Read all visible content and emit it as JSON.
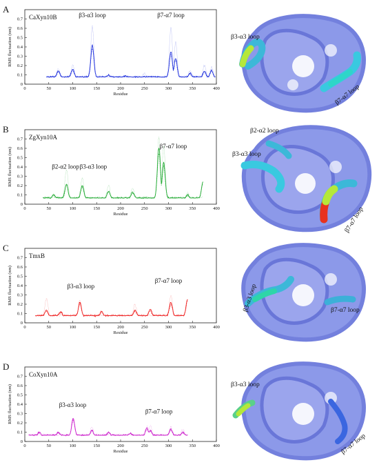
{
  "panels": [
    {
      "letter": "A",
      "chart_data": {
        "type": "line",
        "title": "CaXyn10B",
        "xlabel": "Residue",
        "ylabel": "RMS fluctuation (nm)",
        "xlim": [
          0,
          400
        ],
        "ylim": [
          0,
          0.8
        ],
        "xticks": [
          0,
          50,
          100,
          150,
          200,
          250,
          300,
          350,
          400
        ],
        "yticks": [
          0,
          0.1,
          0.2,
          0.3,
          0.4,
          0.5,
          0.6,
          0.7
        ],
        "color": "#2233dd",
        "x_start": 45,
        "x_end": 398,
        "baseline": 0.07,
        "peaks": [
          [
            70,
            0.14
          ],
          [
            100,
            0.16
          ],
          [
            141,
            0.42
          ],
          [
            175,
            0.1
          ],
          [
            210,
            0.09
          ],
          [
            250,
            0.08
          ],
          [
            305,
            0.35
          ],
          [
            315,
            0.28
          ],
          [
            345,
            0.12
          ],
          [
            375,
            0.14
          ],
          [
            390,
            0.15
          ]
        ],
        "dotted_peaks": [
          [
            70,
            0.16
          ],
          [
            100,
            0.2
          ],
          [
            141,
            0.62
          ],
          [
            250,
            0.12
          ],
          [
            305,
            0.6
          ],
          [
            315,
            0.45
          ],
          [
            345,
            0.15
          ],
          [
            375,
            0.2
          ],
          [
            390,
            0.18
          ]
        ],
        "annotations": [
          {
            "text": "β3-α3 loop",
            "x": 141,
            "y": 0.72
          },
          {
            "text": "β7-α7 loop",
            "x": 305,
            "y": 0.72
          }
        ]
      },
      "structure_labels": [
        {
          "text": "β3-α3 loop"
        },
        {
          "text": "β7-α7 loop"
        }
      ]
    },
    {
      "letter": "B",
      "chart_data": {
        "type": "line",
        "title": "ZgXyn10A",
        "xlabel": "Residue",
        "ylabel": "RMS fluctuation (nm)",
        "xlim": [
          0,
          400
        ],
        "ylim": [
          0,
          0.8
        ],
        "xticks": [
          0,
          50,
          100,
          150,
          200,
          250,
          300,
          350,
          400
        ],
        "yticks": [
          0,
          0.1,
          0.2,
          0.3,
          0.4,
          0.5,
          0.6,
          0.7
        ],
        "color": "#22aa33",
        "x_start": 38,
        "x_end": 372,
        "baseline": 0.06,
        "peaks": [
          [
            60,
            0.1
          ],
          [
            87,
            0.22
          ],
          [
            120,
            0.2
          ],
          [
            175,
            0.14
          ],
          [
            225,
            0.13
          ],
          [
            280,
            0.6
          ],
          [
            290,
            0.45
          ],
          [
            340,
            0.1
          ],
          [
            372,
            0.24
          ]
        ],
        "dotted_peaks": [
          [
            87,
            0.38
          ],
          [
            120,
            0.28
          ],
          [
            175,
            0.2
          ],
          [
            225,
            0.18
          ],
          [
            280,
            0.72
          ],
          [
            290,
            0.62
          ],
          [
            340,
            0.12
          ]
        ],
        "annotations": [
          {
            "text": "β7-α7 loop",
            "x": 310,
            "y": 0.6
          },
          {
            "text": "β2-α2 loop",
            "x": 85,
            "y": 0.38
          },
          {
            "text": "β3-α3 loop",
            "x": 143,
            "y": 0.38
          }
        ]
      },
      "structure_labels": [
        {
          "text": "β2-α2 loop"
        },
        {
          "text": "β3-α3 loop"
        },
        {
          "text": "β7-α7 loop"
        }
      ]
    },
    {
      "letter": "C",
      "chart_data": {
        "type": "line",
        "title": "TmxB",
        "xlabel": "Residue",
        "ylabel": "RMS fluctuation (nm)",
        "xlim": [
          0,
          400
        ],
        "ylim": [
          0,
          0.8
        ],
        "xticks": [
          0,
          50,
          100,
          150,
          200,
          250,
          300,
          350,
          400
        ],
        "yticks": [
          0,
          0.1,
          0.2,
          0.3,
          0.4,
          0.5,
          0.6,
          0.7
        ],
        "color": "#ee2222",
        "x_start": 22,
        "x_end": 340,
        "baseline": 0.07,
        "peaks": [
          [
            45,
            0.14
          ],
          [
            75,
            0.12
          ],
          [
            115,
            0.22
          ],
          [
            160,
            0.12
          ],
          [
            230,
            0.14
          ],
          [
            262,
            0.14
          ],
          [
            305,
            0.22
          ],
          [
            340,
            0.26
          ]
        ],
        "dotted_peaks": [
          [
            45,
            0.26
          ],
          [
            115,
            0.24
          ],
          [
            230,
            0.2
          ],
          [
            305,
            0.3
          ],
          [
            340,
            0.24
          ]
        ],
        "annotations": [
          {
            "text": "β3-α3 loop",
            "x": 117,
            "y": 0.37
          },
          {
            "text": "β7-α7 loop",
            "x": 300,
            "y": 0.43
          }
        ]
      },
      "structure_labels": [
        {
          "text": "β3-α3 loop"
        },
        {
          "text": "β7-α7 loop"
        }
      ]
    },
    {
      "letter": "D",
      "chart_data": {
        "type": "line",
        "title": "CoXyn10A",
        "xlabel": "Residue",
        "ylabel": "RMS fluctuation (nm)",
        "xlim": [
          0,
          400
        ],
        "ylim": [
          0,
          0.8
        ],
        "xticks": [
          0,
          50,
          100,
          150,
          200,
          250,
          300,
          350,
          400
        ],
        "yticks": [
          0,
          0.1,
          0.2,
          0.3,
          0.4,
          0.5,
          0.6,
          0.7
        ],
        "color": "#cc22cc",
        "x_start": 8,
        "x_end": 340,
        "baseline": 0.06,
        "peaks": [
          [
            30,
            0.1
          ],
          [
            70,
            0.1
          ],
          [
            101,
            0.25
          ],
          [
            140,
            0.12
          ],
          [
            175,
            0.1
          ],
          [
            220,
            0.09
          ],
          [
            255,
            0.14
          ],
          [
            262,
            0.12
          ],
          [
            305,
            0.13
          ],
          [
            330,
            0.1
          ]
        ],
        "dotted_peaks": [
          [
            101,
            0.22
          ],
          [
            140,
            0.15
          ],
          [
            255,
            0.16
          ],
          [
            262,
            0.17
          ],
          [
            305,
            0.16
          ],
          [
            330,
            0.13
          ]
        ],
        "annotations": [
          {
            "text": "β3-α3 loop",
            "x": 100,
            "y": 0.37
          },
          {
            "text": "β7-α7 loop",
            "x": 280,
            "y": 0.3
          }
        ]
      },
      "structure_labels": [
        {
          "text": "β3-α3 loop"
        },
        {
          "text": "β7-α7 loop"
        }
      ]
    }
  ]
}
